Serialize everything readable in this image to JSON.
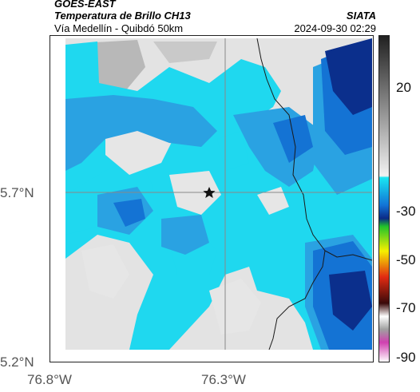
{
  "header": {
    "satellite": "GOES-EAST",
    "product": "Temperatura de Brillo CH13",
    "route": "Vía Medellín - Quibdó 50km",
    "source": "SIATA",
    "datetime": "2024-09-30 02:29"
  },
  "axes": {
    "y_ticks": [
      "5.7°N",
      "5.2°N"
    ],
    "x_ticks": [
      "76.8°W",
      "76.3°W"
    ]
  },
  "colorbar": {
    "ticks": [
      "20",
      "-30",
      "-50",
      "-70",
      "-90"
    ],
    "colors": {
      "warm_gray_top": "#202020",
      "warm_gray_bottom": "#f2f2f2",
      "cyan": "#19e6f2",
      "blue": "#1273d6",
      "navy": "#0b2a86",
      "green": "#22c32a",
      "yellow": "#f6f000",
      "red": "#e12a12",
      "magenta": "#d040b0"
    }
  },
  "map": {
    "marker_icon": "star-icon",
    "colors": {
      "clear": "#e3e3e3",
      "cyan": "#1fd8ef",
      "blue_light": "#2aa2e2",
      "blue": "#1473d4",
      "navy": "#0b2f8c",
      "border": "#1a1a1a",
      "crosshair": "#888888"
    }
  }
}
